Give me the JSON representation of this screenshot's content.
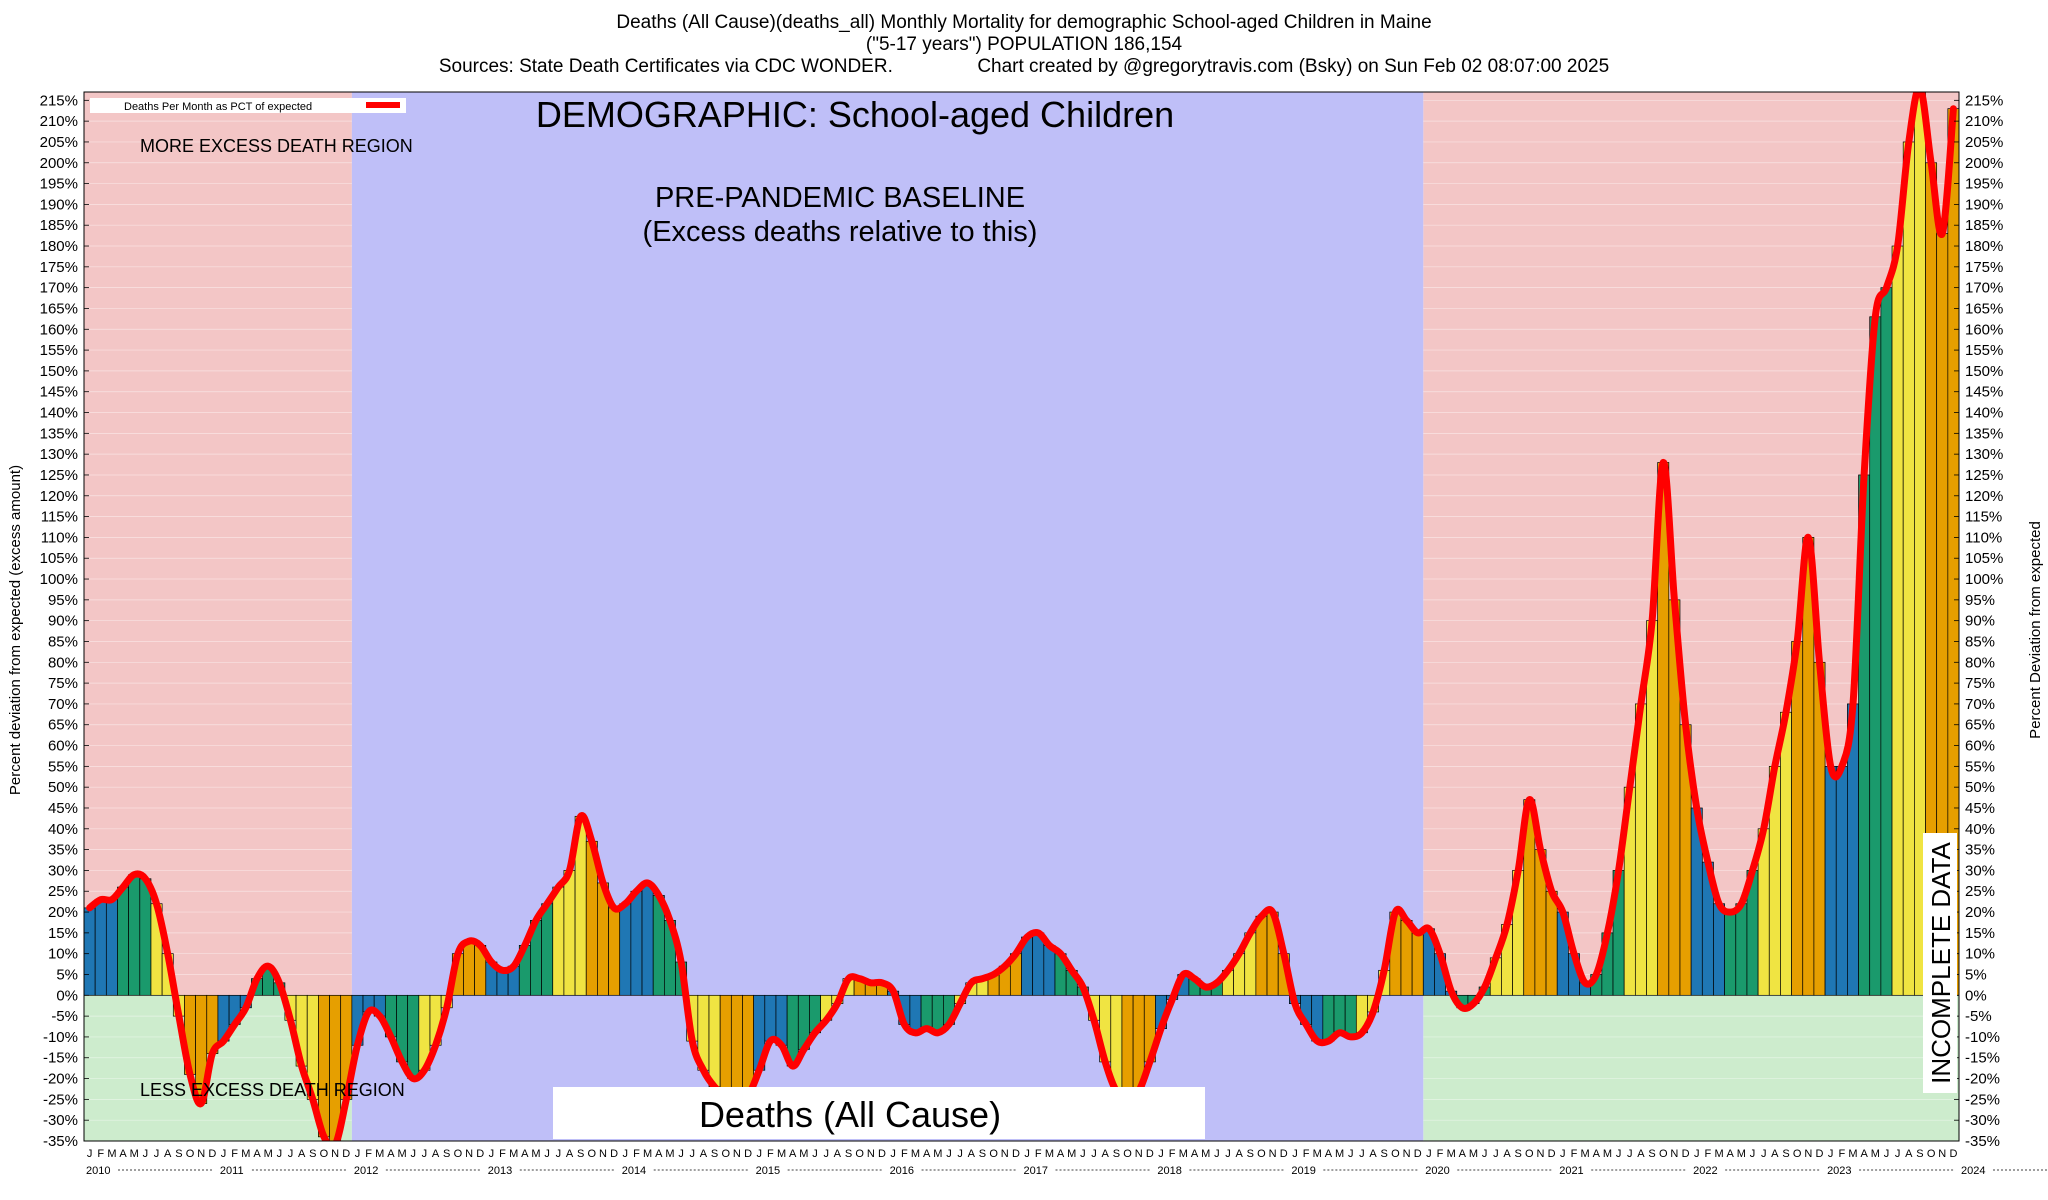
{
  "header": {
    "title_line1": "Deaths (All Cause)(deaths_all) Monthly Mortality for demographic School-aged Children in Maine",
    "title_line2": "(\"5-17 years\") POPULATION 186,154",
    "title_line3": "Sources: State Death Certificates via CDC WONDER.                Chart created by @gregorytravis.com (Bsky) on Sun Feb 02 08:07:00 2025"
  },
  "chart_data": {
    "type": "bar",
    "title": "DEMOGRAPHIC: School-aged Children",
    "ylabel_left": "Percent deviation from expected (excess amount)",
    "ylabel_right": "Percent Deviation from expected",
    "legend": {
      "label": "Deaths Per Month as PCT of expected",
      "position": "top-left"
    },
    "annotations": {
      "more_excess": "MORE EXCESS DEATH REGION",
      "less_excess": "LESS EXCESS DEATH REGION",
      "baseline_line1": "PRE-PANDEMIC BASELINE",
      "baseline_line2": "(Excess deaths relative to this)",
      "measure_box": "Deaths (All Cause)",
      "incomplete": "INCOMPLETE DATA"
    },
    "ylim": [
      -35,
      217
    ],
    "ytick_step": 5,
    "grid": true,
    "start_year": 2010,
    "years": [
      "2010",
      "2011",
      "2012",
      "2013",
      "2014",
      "2015",
      "2016",
      "2017",
      "2018",
      "2019",
      "2020",
      "2021",
      "2022",
      "2023",
      "2024"
    ],
    "month_letters": [
      "J",
      "F",
      "M",
      "A",
      "M",
      "J",
      "J",
      "A",
      "S",
      "O",
      "N",
      "D"
    ],
    "baseline_period": [
      "2012-01",
      "2019-12"
    ],
    "incomplete_from": "2024-09",
    "colors": {
      "bar_palette": [
        "#1f77b4",
        "#1a9a6c",
        "#f0e442",
        "#e69f00"
      ],
      "line": "#ff0000",
      "excess_region": "#f3c6c6",
      "deficit_region": "#cdeccd",
      "baseline_region": "#bfbff8",
      "incomplete_hatch": "#222222"
    },
    "values": [
      21,
      23,
      23,
      26,
      29,
      28,
      22,
      10,
      -5,
      -19,
      -26,
      -14,
      -11,
      -7,
      -3,
      4,
      7,
      3,
      -6,
      -17,
      -25,
      -34,
      -36,
      -25,
      -12,
      -4,
      -5,
      -10,
      -16,
      -20,
      -18,
      -12,
      -3,
      10,
      13,
      12,
      8,
      6,
      7,
      12,
      18,
      22,
      26,
      30,
      43,
      37,
      27,
      21,
      22,
      25,
      27,
      24,
      18,
      8,
      -11,
      -18,
      -22,
      -24,
      -24,
      -24,
      -18,
      -11,
      -12,
      -17,
      -13,
      -9,
      -6,
      -2,
      4,
      4,
      3,
      3,
      1,
      -7,
      -9,
      -8,
      -9,
      -7,
      -2,
      3,
      4,
      5,
      7,
      10,
      14,
      15,
      12,
      10,
      6,
      2,
      -6,
      -16,
      -23,
      -24,
      -23,
      -16,
      -8,
      -1,
      5,
      4,
      2,
      3,
      6,
      10,
      15,
      19,
      20,
      10,
      -2,
      -7,
      -11,
      -11,
      -9,
      -10,
      -9,
      -4,
      6,
      20,
      18,
      15,
      16,
      10,
      1,
      -3,
      -2,
      2,
      9,
      17,
      30,
      47,
      35,
      25,
      20,
      10,
      3,
      5,
      15,
      30,
      50,
      70,
      90,
      128,
      95,
      65,
      45,
      32,
      22,
      20,
      22,
      30,
      40,
      55,
      68,
      85,
      110,
      80,
      55,
      55,
      70,
      125,
      163,
      170,
      180,
      205,
      218,
      200,
      183,
      213
    ]
  }
}
